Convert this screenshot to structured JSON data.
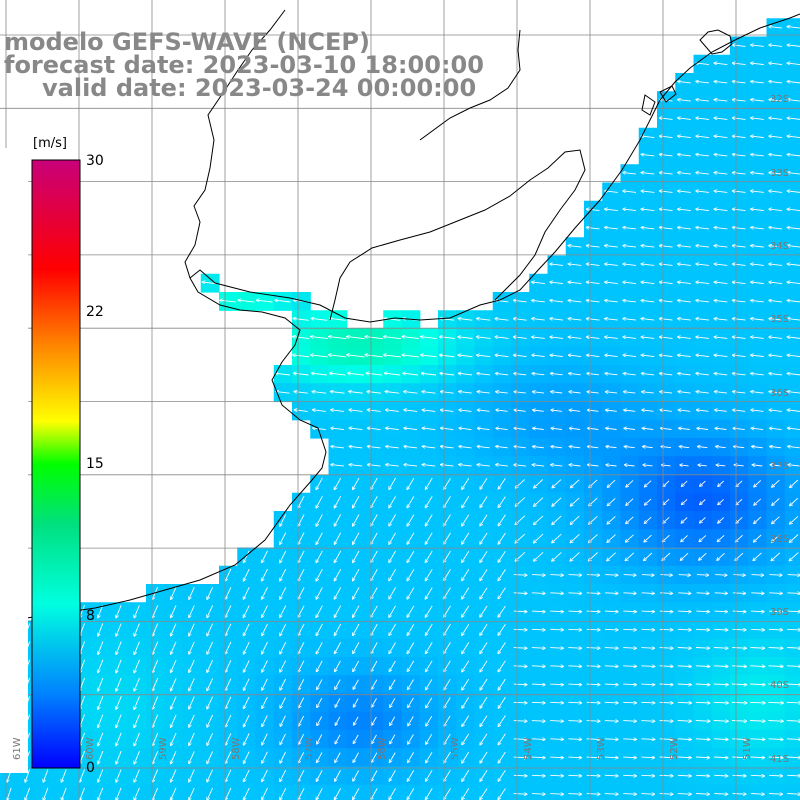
{
  "title": {
    "line1": "modelo GEFS-WAVE (NCEP)",
    "line2": "forecast date: 2023-03-10 18:00:00",
    "line3": "valid date: 2023-03-24 00:00:00"
  },
  "colorbar": {
    "unit": "[m/s]",
    "ticks": [
      "30",
      "22",
      "15",
      "8",
      "0"
    ],
    "stops": [
      "#c80078",
      "#ff0000",
      "#ff8c00",
      "#ffff00",
      "#00c800",
      "#00ffe0",
      "#00a0ff",
      "#0000ff"
    ]
  },
  "colors": {
    "grid": "#888888",
    "coast": "#000000",
    "arrow": "#ffffff",
    "land": "#ffffff"
  },
  "grid_labels": {
    "lat": [
      "32S",
      "33S",
      "34S",
      "35S",
      "36S",
      "37S",
      "38S",
      "39S",
      "40S",
      "41S"
    ],
    "lon": [
      "61W",
      "60W",
      "59W",
      "58W",
      "57W",
      "56W",
      "55W",
      "54W",
      "53W",
      "52W",
      "51W"
    ]
  }
}
